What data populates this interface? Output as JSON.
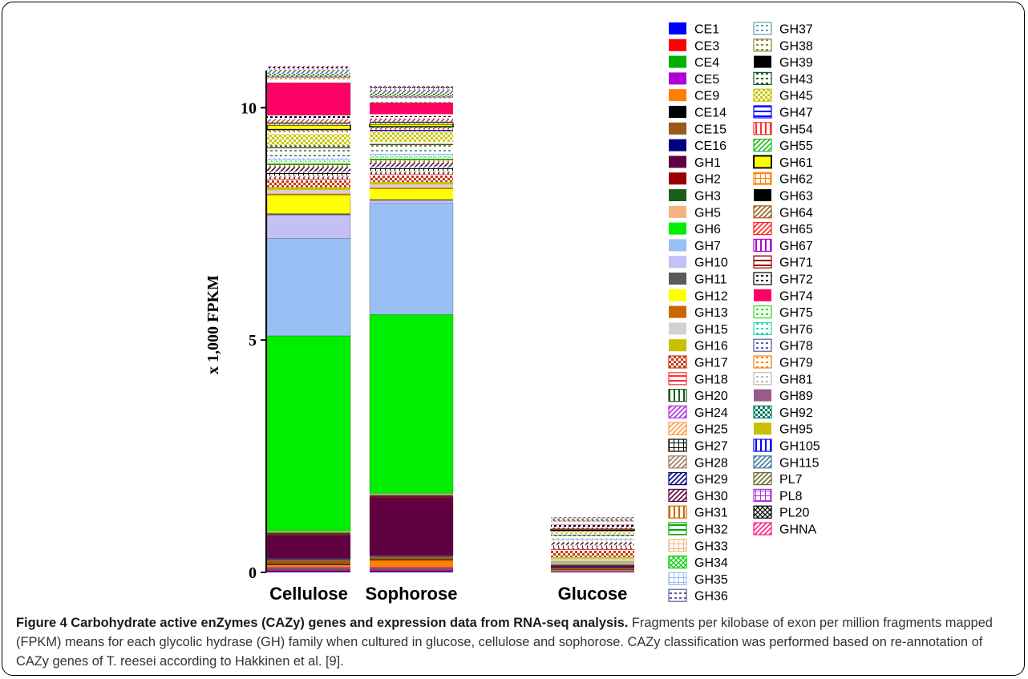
{
  "chart_data": {
    "type": "bar",
    "stacked": true,
    "ylabel": "x 1,000 FPKM",
    "ylim": [
      0,
      10.8
    ],
    "yticks": [
      0,
      5,
      10
    ],
    "categories": [
      "Cellulose",
      "Sophorose",
      "Glucose"
    ],
    "legend_position": "right",
    "series": [
      {
        "name": "CE1",
        "color": "#0000ff",
        "pattern": "solid",
        "values": [
          0.03,
          0.03,
          0.01
        ]
      },
      {
        "name": "CE3",
        "color": "#ff0000",
        "pattern": "solid",
        "values": [
          0.03,
          0.03,
          0.01
        ]
      },
      {
        "name": "CE4",
        "color": "#00b000",
        "pattern": "solid",
        "values": [
          0.02,
          0.02,
          0.01
        ]
      },
      {
        "name": "CE5",
        "color": "#b000d8",
        "pattern": "solid",
        "values": [
          0.03,
          0.03,
          0.01
        ]
      },
      {
        "name": "CE9",
        "color": "#ff8000",
        "pattern": "solid",
        "values": [
          0.05,
          0.15,
          0.02
        ]
      },
      {
        "name": "CE14",
        "color": "#000000",
        "pattern": "solid",
        "values": [
          0.02,
          0.02,
          0.01
        ]
      },
      {
        "name": "CE15",
        "color": "#9a5a1e",
        "pattern": "solid",
        "values": [
          0.1,
          0.07,
          0.02
        ]
      },
      {
        "name": "CE16",
        "color": "#00007f",
        "pattern": "solid",
        "values": [
          0.02,
          0.02,
          0.01
        ]
      },
      {
        "name": "GH1",
        "color": "#600040",
        "pattern": "solid",
        "values": [
          0.5,
          1.25,
          0.05
        ]
      },
      {
        "name": "GH2",
        "color": "#990000",
        "pattern": "solid",
        "values": [
          0.02,
          0.02,
          0.01
        ]
      },
      {
        "name": "GH3",
        "color": "#1c5c1c",
        "pattern": "solid",
        "values": [
          0.04,
          0.03,
          0.01
        ]
      },
      {
        "name": "GH5",
        "color": "#f2b47c",
        "pattern": "solid",
        "values": [
          0.03,
          0.03,
          0.01
        ]
      },
      {
        "name": "GH6",
        "color": "#00ee00",
        "pattern": "solid",
        "values": [
          4.2,
          3.85,
          0.01
        ]
      },
      {
        "name": "GH7",
        "color": "#99bff5",
        "pattern": "solid",
        "values": [
          2.1,
          2.4,
          0.01
        ]
      },
      {
        "name": "GH10",
        "color": "#c4c0f6",
        "pattern": "solid",
        "values": [
          0.5,
          0.05,
          0.01
        ]
      },
      {
        "name": "GH11",
        "color": "#5a5a5a",
        "pattern": "solid",
        "values": [
          0.03,
          0.03,
          0.01
        ]
      },
      {
        "name": "GH12",
        "color": "#ffff00",
        "pattern": "solid",
        "values": [
          0.4,
          0.22,
          0.01
        ]
      },
      {
        "name": "GH13",
        "color": "#cc6600",
        "pattern": "solid",
        "values": [
          0.03,
          0.03,
          0.01
        ]
      },
      {
        "name": "GH15",
        "color": "#d2d2d2",
        "pattern": "solid",
        "values": [
          0.08,
          0.07,
          0.06
        ]
      },
      {
        "name": "GH16",
        "color": "#c8c000",
        "pattern": "solid",
        "values": [
          0.06,
          0.05,
          0.03
        ]
      },
      {
        "name": "GH17",
        "color": "#c83c14",
        "pattern": "checker",
        "values": [
          0.15,
          0.14,
          0.14
        ]
      },
      {
        "name": "GH18",
        "color": "#ff3030",
        "pattern": "hlines",
        "values": [
          0.03,
          0.03,
          0.03
        ]
      },
      {
        "name": "GH20",
        "color": "#1c5c1c",
        "pattern": "vlines",
        "values": [
          0.03,
          0.03,
          0.02
        ]
      },
      {
        "name": "GH24",
        "color": "#b030e0",
        "pattern": "diag",
        "values": [
          0.02,
          0.02,
          0.01
        ]
      },
      {
        "name": "GH25",
        "color": "#ff9a40",
        "pattern": "diag",
        "values": [
          0.02,
          0.02,
          0.01
        ]
      },
      {
        "name": "GH27",
        "color": "#000000",
        "pattern": "grid",
        "values": [
          0.06,
          0.06,
          0.04
        ]
      },
      {
        "name": "GH28",
        "color": "#9a7a5a",
        "pattern": "diag",
        "values": [
          0.04,
          0.04,
          0.02
        ]
      },
      {
        "name": "GH29",
        "color": "#00007f",
        "pattern": "diag",
        "values": [
          0.03,
          0.03,
          0.02
        ]
      },
      {
        "name": "GH30",
        "color": "#600040",
        "pattern": "diag",
        "values": [
          0.05,
          0.05,
          0.02
        ]
      },
      {
        "name": "GH31",
        "color": "#cc6600",
        "pattern": "vlines",
        "values": [
          0.04,
          0.04,
          0.02
        ]
      },
      {
        "name": "GH32",
        "color": "#00aa00",
        "pattern": "hlines",
        "values": [
          0.05,
          0.04,
          0.02
        ]
      },
      {
        "name": "GH33",
        "color": "#f2b47c",
        "pattern": "grid",
        "values": [
          0.03,
          0.03,
          0.02
        ]
      },
      {
        "name": "GH34",
        "color": "#00cc00",
        "pattern": "xhatch",
        "values": [
          0.02,
          0.02,
          0.01
        ]
      },
      {
        "name": "GH35",
        "color": "#99bff5",
        "pattern": "grid",
        "values": [
          0.06,
          0.06,
          0.03
        ]
      },
      {
        "name": "GH36",
        "color": "#5a5aa0",
        "pattern": "dots",
        "values": [
          0.05,
          0.05,
          0.02
        ]
      },
      {
        "name": "GH37",
        "color": "#5aa0b4",
        "pattern": "dots",
        "values": [
          0.04,
          0.04,
          0.02
        ]
      },
      {
        "name": "GH38",
        "color": "#8a8a3a",
        "pattern": "dots",
        "values": [
          0.12,
          0.1,
          0.02
        ]
      },
      {
        "name": "GH39",
        "color": "#000000",
        "pattern": "solid",
        "values": [
          0.02,
          0.02,
          0.01
        ]
      },
      {
        "name": "GH43",
        "color": "#1c5c1c",
        "pattern": "dots",
        "values": [
          0.04,
          0.04,
          0.02
        ]
      },
      {
        "name": "GH45",
        "color": "#c8c800",
        "pattern": "checker",
        "values": [
          0.25,
          0.24,
          0.03
        ]
      },
      {
        "name": "GH47",
        "color": "#0000ff",
        "pattern": "hlines",
        "values": [
          0.03,
          0.03,
          0.02
        ]
      },
      {
        "name": "GH54",
        "color": "#ff3030",
        "pattern": "vlines",
        "values": [
          0.03,
          0.03,
          0.01
        ]
      },
      {
        "name": "GH55",
        "color": "#22bb22",
        "pattern": "diag",
        "values": [
          0.03,
          0.03,
          0.01
        ]
      },
      {
        "name": "GH61",
        "color": "#ffff00",
        "pattern": "outline",
        "values": [
          0.1,
          0.06,
          0.02
        ]
      },
      {
        "name": "GH62",
        "color": "#ff8000",
        "pattern": "grid",
        "values": [
          0.03,
          0.03,
          0.01
        ]
      },
      {
        "name": "GH63",
        "color": "#000000",
        "pattern": "solid",
        "values": [
          0.02,
          0.02,
          0.01
        ]
      },
      {
        "name": "GH64",
        "color": "#9a5a1e",
        "pattern": "diag",
        "values": [
          0.03,
          0.03,
          0.01
        ]
      },
      {
        "name": "GH65",
        "color": "#ff2020",
        "pattern": "diag",
        "values": [
          0.02,
          0.02,
          0.01
        ]
      },
      {
        "name": "GH67",
        "color": "#b000d8",
        "pattern": "vlines",
        "values": [
          0.02,
          0.02,
          0.01
        ]
      },
      {
        "name": "GH71",
        "color": "#990000",
        "pattern": "hlines",
        "values": [
          0.03,
          0.03,
          0.01
        ]
      },
      {
        "name": "GH72",
        "color": "#000000",
        "pattern": "dots",
        "values": [
          0.06,
          0.06,
          0.04
        ]
      },
      {
        "name": "GH74",
        "color": "#ff0066",
        "pattern": "solid",
        "values": [
          0.7,
          0.25,
          0.01
        ]
      },
      {
        "name": "GH75",
        "color": "#22dd22",
        "pattern": "dots",
        "values": [
          0.02,
          0.02,
          0.01
        ]
      },
      {
        "name": "GH76",
        "color": "#33d6b8",
        "pattern": "dots",
        "values": [
          0.03,
          0.03,
          0.03
        ]
      },
      {
        "name": "GH78",
        "color": "#5a5aa0",
        "pattern": "dots",
        "values": [
          0.02,
          0.02,
          0.01
        ]
      },
      {
        "name": "GH79",
        "color": "#ff8000",
        "pattern": "dots",
        "values": [
          0.02,
          0.02,
          0.01
        ]
      },
      {
        "name": "GH81",
        "color": "#bbbbbb",
        "pattern": "dots",
        "values": [
          0.02,
          0.02,
          0.01
        ]
      },
      {
        "name": "GH89",
        "color": "#9a5a8a",
        "pattern": "solid",
        "values": [
          0.02,
          0.02,
          0.01
        ]
      },
      {
        "name": "GH92",
        "color": "#008060",
        "pattern": "checker",
        "values": [
          0.02,
          0.02,
          0.01
        ]
      },
      {
        "name": "GH95",
        "color": "#c8c000",
        "pattern": "solid",
        "values": [
          0.02,
          0.02,
          0.01
        ]
      },
      {
        "name": "GH105",
        "color": "#0000ff",
        "pattern": "vlines",
        "values": [
          0.02,
          0.02,
          0.01
        ]
      },
      {
        "name": "GH115",
        "color": "#3a7a9a",
        "pattern": "diag",
        "values": [
          0.06,
          0.06,
          0.01
        ]
      },
      {
        "name": "PL7",
        "color": "#6a6a2a",
        "pattern": "diag",
        "values": [
          0.03,
          0.03,
          0.01
        ]
      },
      {
        "name": "PL8",
        "color": "#b030e0",
        "pattern": "grid",
        "values": [
          0.03,
          0.03,
          0.01
        ]
      },
      {
        "name": "PL20",
        "color": "#000000",
        "pattern": "xhatch",
        "values": [
          0.03,
          0.03,
          0.01
        ]
      },
      {
        "name": "GHNA",
        "color": "#ff1a8c",
        "pattern": "diag",
        "values": [
          0.02,
          0.02,
          0.01
        ]
      }
    ]
  },
  "caption": {
    "title": "Figure 4 Carbohydrate active enZymes (CAZy) genes and expression data from RNA-seq analysis.",
    "text": " Fragments per kilobase of exon per million fragments mapped (FPKM) means for each glycolic hydrase (GH) family when cultured in glucose, cellulose and sophorose. CAZy classification was performed based on re-annotation of CAZy genes of T. reesei according to Hakkinen et al. [9]."
  }
}
